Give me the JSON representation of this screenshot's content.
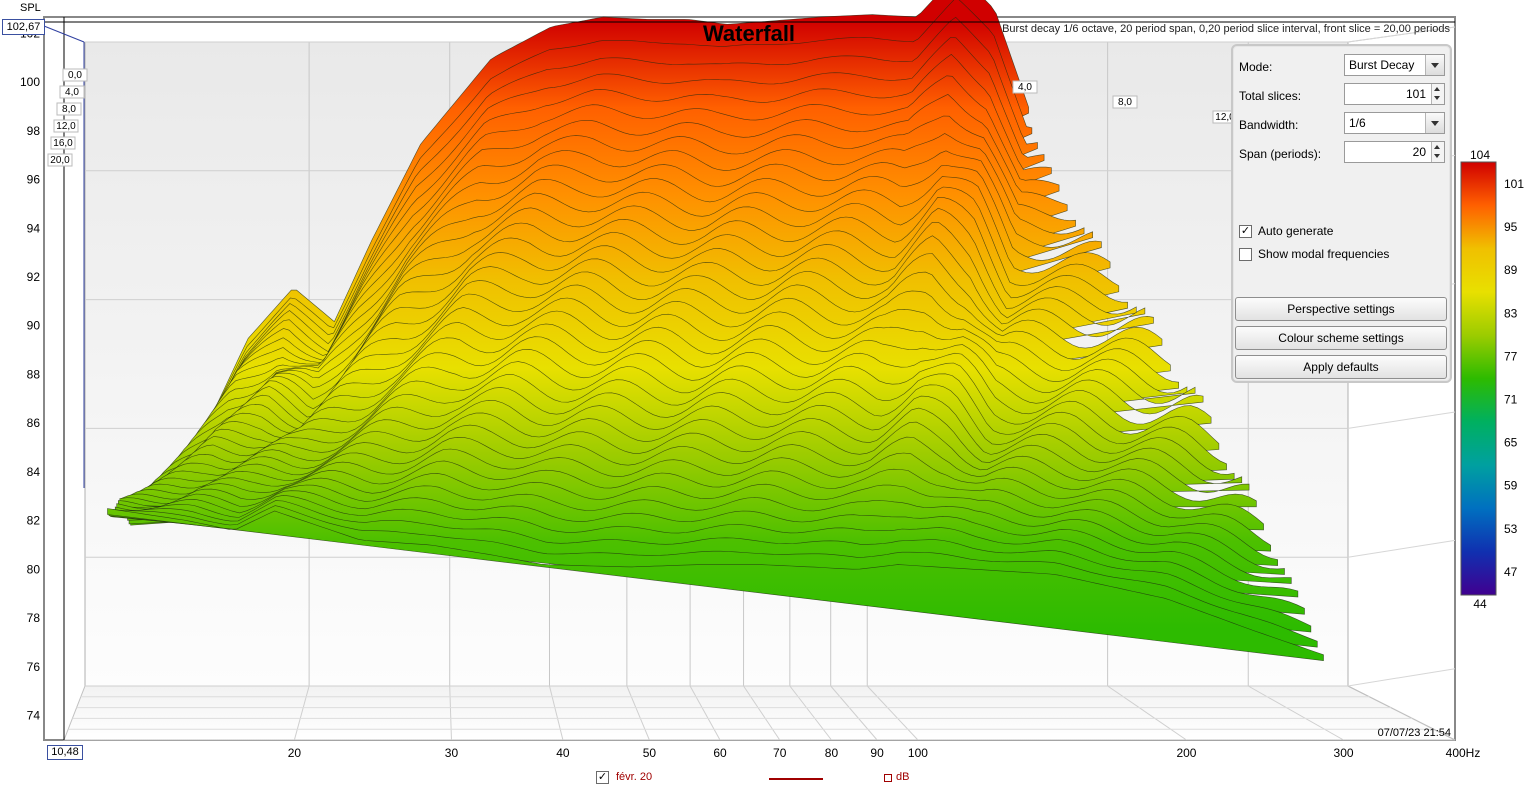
{
  "chart_data": {
    "type": "area",
    "chart_kind": "3d-waterfall",
    "title": "Waterfall",
    "subtitle": "Burst decay 1/6 octave, 20 period span, 0,20 period slice interval, front slice = 20,00 periods",
    "ylabel": "SPL",
    "x_unit_label": "400Hz",
    "x_scale": "log",
    "xlim": [
      10.48,
      400
    ],
    "ylim": [
      73,
      102.67
    ],
    "x_ticks": [
      "20",
      "30",
      "40",
      "50",
      "60",
      "70",
      "80",
      "90",
      "100",
      "200",
      "300",
      "400Hz"
    ],
    "x_cursor_readout": "10,48",
    "y_ticks": [
      74,
      76,
      78,
      80,
      82,
      84,
      86,
      88,
      90,
      92,
      94,
      96,
      98,
      100,
      102
    ],
    "y_cursor_readout": "102,67",
    "depth_ticks": [
      "4,0",
      "8,0",
      "12,0",
      "16,0",
      "20,0"
    ],
    "depth_ticks_left": [
      "0,0",
      "4,0",
      "8,0",
      "12,0",
      "16,0",
      "20,0"
    ],
    "grid": true,
    "timestamp": "07/07/23 21:54",
    "colour_scale": {
      "ticks": [
        "104",
        "101",
        "95",
        "89",
        "83",
        "77",
        "71",
        "65",
        "59",
        "53",
        "47",
        "44"
      ],
      "colors": [
        "#d00000",
        "#ff6000",
        "#f0c000",
        "#e8e000",
        "#9ccc00",
        "#2dbb00",
        "#00b060",
        "#00a0a0",
        "#0070c0",
        "#1030b0",
        "#400090"
      ]
    },
    "rear_slice": {
      "freq_hz": [
        13,
        16,
        18,
        20,
        22,
        25,
        30,
        35,
        40,
        45,
        50,
        55,
        60,
        65,
        70,
        80,
        90,
        100,
        110,
        120
      ],
      "spl_db": [
        80.5,
        87.5,
        89.6,
        88.2,
        91.5,
        95.5,
        99.0,
        100.3,
        100.7,
        100.6,
        100.6,
        100.4,
        100.5,
        100.6,
        100.7,
        100.8,
        100.7,
        102.5,
        101.0,
        97.0
      ]
    },
    "front_slice": {
      "freq_hz": [
        13,
        16,
        18,
        20,
        25,
        30,
        35,
        40,
        50,
        60,
        70,
        80,
        90,
        100,
        150,
        200,
        250,
        300
      ],
      "spl_db": [
        82.5,
        82.0,
        81.6,
        82.4,
        81.2,
        81.0,
        80.6,
        80.2,
        80.1,
        80.2,
        80.2,
        80.1,
        80.0,
        80.2,
        79.8,
        78.8,
        77.5,
        76.5
      ]
    },
    "series": [
      {
        "name": "févr. 20",
        "color": "#a00000"
      }
    ]
  },
  "legend": {
    "series_label": "févr. 20",
    "checked": true,
    "unit_label": "dB",
    "line_color": "#a00000"
  },
  "panel": {
    "mode_label": "Mode:",
    "mode_value": "Burst Decay",
    "slices_label": "Total slices:",
    "slices_value": "101",
    "bandwidth_label": "Bandwidth:",
    "bandwidth_value": "1/6",
    "span_label": "Span (periods):",
    "span_value": "20",
    "auto_generate_label": "Auto generate",
    "auto_generate_checked": true,
    "modal_label": "Show modal frequencies",
    "modal_checked": false,
    "perspective_btn": "Perspective settings",
    "colour_btn": "Colour scheme settings",
    "defaults_btn": "Apply defaults"
  }
}
